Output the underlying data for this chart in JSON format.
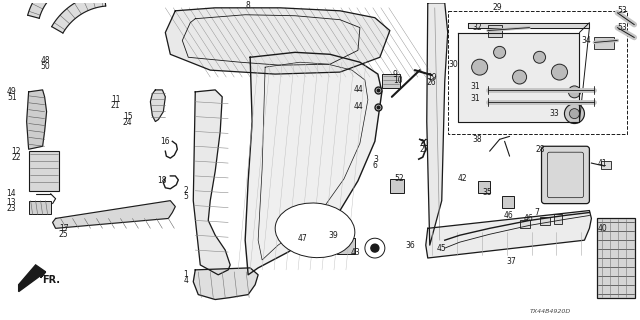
{
  "bg_color": "#ffffff",
  "line_color": "#1a1a1a",
  "text_color": "#1a1a1a",
  "font_size": 5.5,
  "diagram_code": "TX44B4920D",
  "fig_width": 6.4,
  "fig_height": 3.2
}
